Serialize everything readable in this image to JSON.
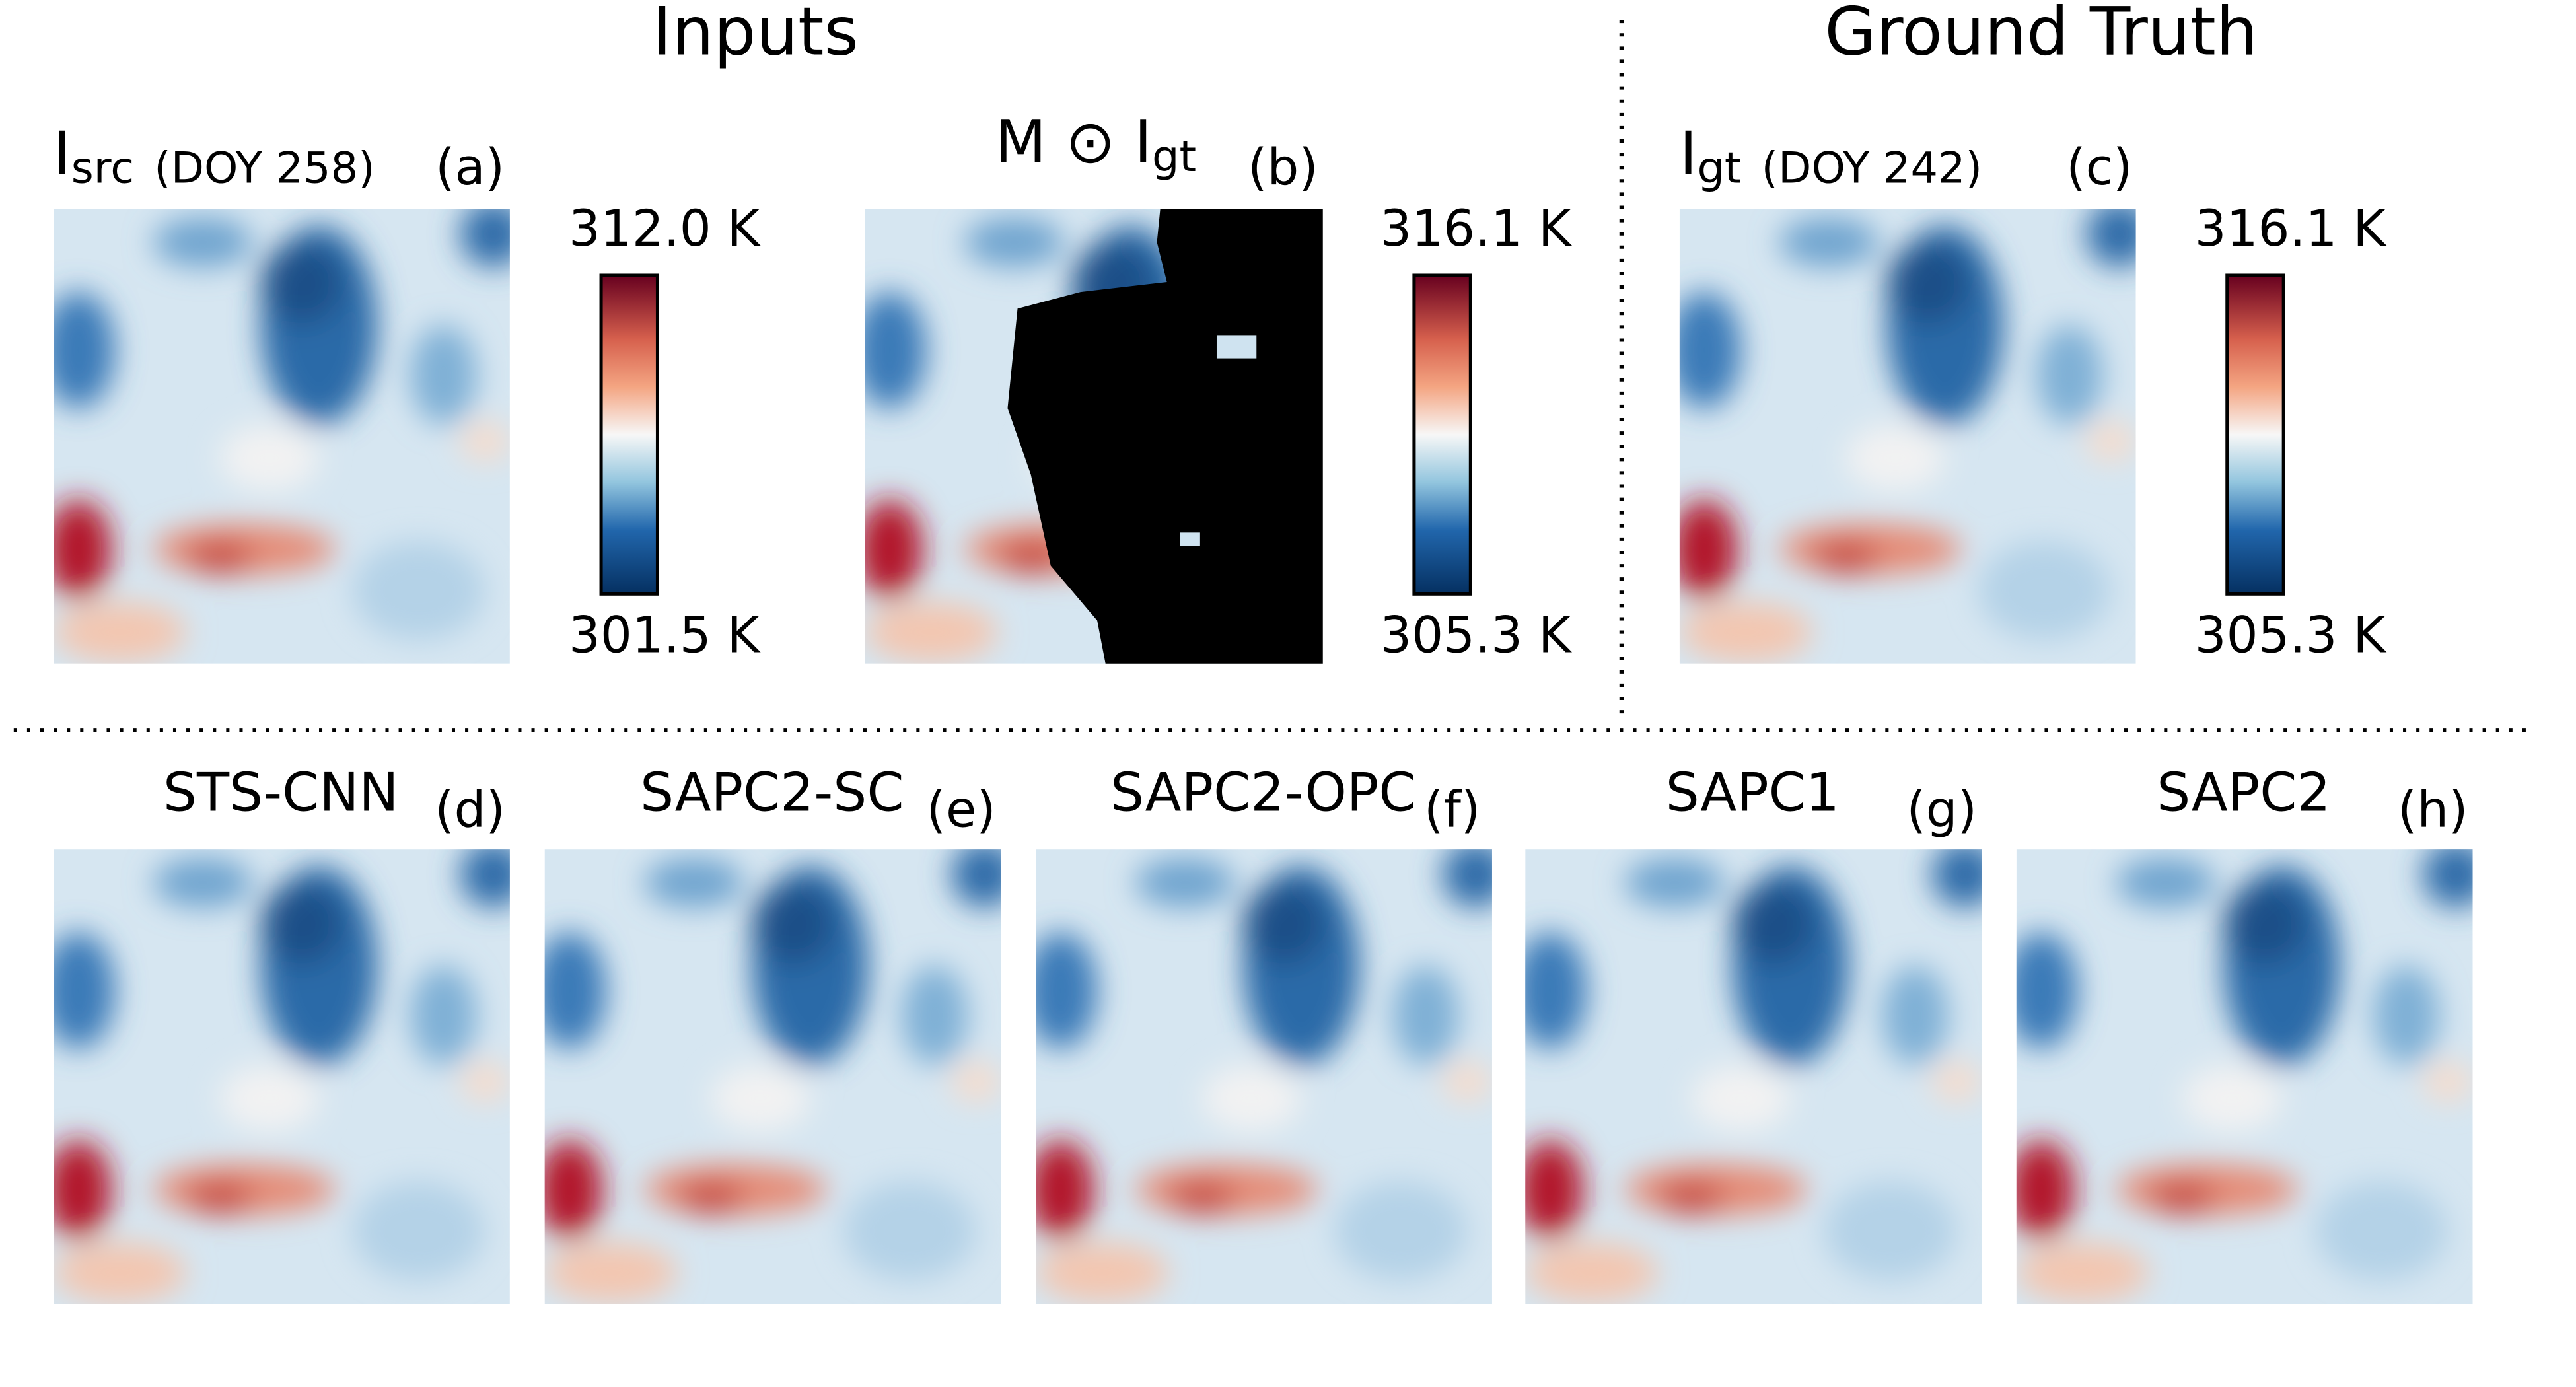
{
  "headers": {
    "inputs": "Inputs",
    "ground_truth": "Ground Truth"
  },
  "panels": [
    {
      "symbol": "I",
      "subscript": "src",
      "note": "(DOY 258)",
      "tag": "(a)"
    },
    {
      "symbol": "M ⊙ I",
      "subscript": "gt",
      "tag": "(b)"
    },
    {
      "symbol": "I",
      "subscript": "gt",
      "note": "(DOY 242)",
      "tag": "(c)"
    }
  ],
  "colorbars": [
    {
      "max": "312.0 K",
      "min": "301.5 K"
    },
    {
      "max": "316.1 K",
      "min": "305.3 K"
    },
    {
      "max": "316.1 K",
      "min": "305.3 K"
    }
  ],
  "results": [
    {
      "title": "STS-CNN",
      "tag": "(d)"
    },
    {
      "title": "SAPC2-SC",
      "tag": "(e)"
    },
    {
      "title": "SAPC2-OPC",
      "tag": "(f)"
    },
    {
      "title": "SAPC1",
      "tag": "(g)"
    },
    {
      "title": "SAPC2",
      "tag": "(h)"
    }
  ]
}
